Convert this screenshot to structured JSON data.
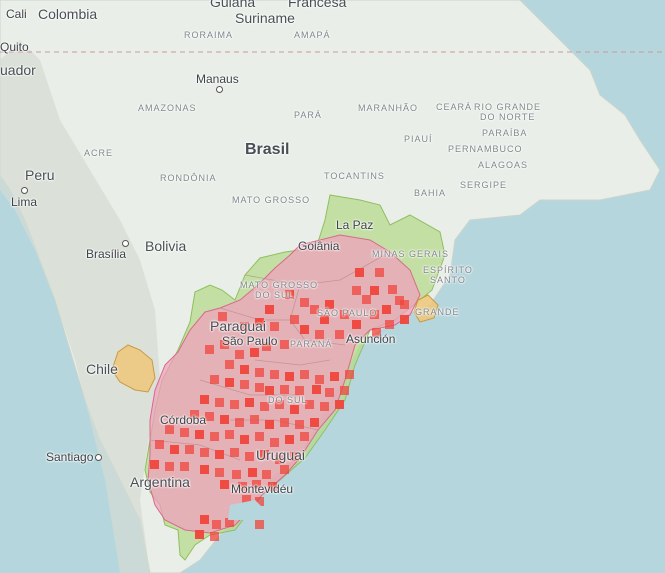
{
  "map": {
    "colors": {
      "ocean": "#b6d6dd",
      "land": "#e9efe8",
      "green_region": "#b5d98e",
      "pink_region": "#f2a2bd",
      "orange_region": "#eec77a",
      "occurrence": "#f0463c"
    },
    "country_labels": [
      {
        "id": "colombia",
        "text": "Colombia"
      },
      {
        "id": "suriname",
        "text": "Suriname"
      },
      {
        "id": "francesa",
        "text": "Francesa"
      },
      {
        "id": "guiana",
        "text": "Guiana"
      },
      {
        "id": "ecuador",
        "text": "uador"
      },
      {
        "id": "peru",
        "text": "Peru"
      },
      {
        "id": "brasil",
        "text": "Brasil"
      },
      {
        "id": "bolivia",
        "text": "Bolivia"
      },
      {
        "id": "paraguai",
        "text": "Paraguai"
      },
      {
        "id": "chile",
        "text": "Chile"
      },
      {
        "id": "argentina",
        "text": "Argentina"
      },
      {
        "id": "uruguai",
        "text": "Uruguai"
      }
    ],
    "city_labels": [
      {
        "id": "cali",
        "text": "Cali"
      },
      {
        "id": "quito",
        "text": "Quito"
      },
      {
        "id": "manaus",
        "text": "Manaus"
      },
      {
        "id": "lima",
        "text": "Lima"
      },
      {
        "id": "la-paz",
        "text": "La Paz"
      },
      {
        "id": "brasilia",
        "text": "Brasília"
      },
      {
        "id": "goiania",
        "text": "Goiânia"
      },
      {
        "id": "sao-paulo",
        "text": "São Paulo"
      },
      {
        "id": "asuncion",
        "text": "Asunción"
      },
      {
        "id": "cordoba",
        "text": "Córdoba"
      },
      {
        "id": "santiago",
        "text": "Santiago"
      },
      {
        "id": "montevideu",
        "text": "Montevidéu"
      }
    ],
    "state_labels": [
      {
        "id": "roraima",
        "text": "RORAIMA"
      },
      {
        "id": "amapa",
        "text": "AMAPÁ"
      },
      {
        "id": "amazonas",
        "text": "AMAZONAS"
      },
      {
        "id": "para",
        "text": "PARÁ"
      },
      {
        "id": "maranhao",
        "text": "MARANHÃO"
      },
      {
        "id": "ceara",
        "text": "CEARÁ"
      },
      {
        "id": "rio-grande-1",
        "text": "RIO GRANDE"
      },
      {
        "id": "do-norte",
        "text": "DO NORTE"
      },
      {
        "id": "paraiba",
        "text": "PARAÍBA"
      },
      {
        "id": "piaui",
        "text": "PIAUÍ"
      },
      {
        "id": "pernambuco",
        "text": "PERNAMBUCO"
      },
      {
        "id": "alagoas",
        "text": "ALAGOAS"
      },
      {
        "id": "acre",
        "text": "ACRE"
      },
      {
        "id": "rondonia",
        "text": "RONDÔNIA"
      },
      {
        "id": "tocantins",
        "text": "TOCANTINS"
      },
      {
        "id": "sergipe",
        "text": "SERGIPE"
      },
      {
        "id": "bahia",
        "text": "BAHIA"
      },
      {
        "id": "mato-grosso",
        "text": "MATO GROSSO"
      },
      {
        "id": "minas-gerais",
        "text": "MINAS GERAIS"
      },
      {
        "id": "espirito",
        "text": "ESPÍRITO"
      },
      {
        "id": "santo",
        "text": "SANTO"
      },
      {
        "id": "mato-grosso-sul-1",
        "text": "MATO GROSSO"
      },
      {
        "id": "do-sul",
        "text": "DO SUL"
      },
      {
        "id": "sao-paulo-state",
        "text": "SÃO PAULO"
      },
      {
        "id": "parana",
        "text": "PARANÁ"
      },
      {
        "id": "janeiro",
        "text": "JANEIRO"
      },
      {
        "id": "grande",
        "text": "GRANDE"
      },
      {
        "id": "do-sul-rs",
        "text": "DO SUL"
      }
    ]
  }
}
